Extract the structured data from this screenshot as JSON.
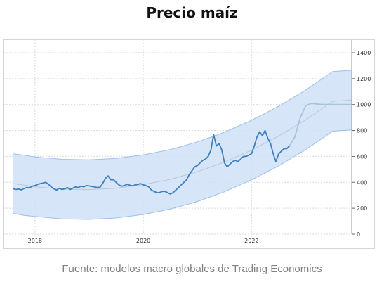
{
  "header": {
    "title": "Precio maíz"
  },
  "footer": {
    "source": "Fuente: modelos macro globales de Trading Economics"
  },
  "chart_data": {
    "type": "line",
    "title": "Precio maíz",
    "xlabel": "",
    "ylabel": "",
    "xlim": [
      2017.6,
      2023.85
    ],
    "ylim": [
      0,
      1400
    ],
    "x_ticks": [
      2018,
      2020,
      2022
    ],
    "x_tick_labels": [
      "2018",
      "2020",
      "2022"
    ],
    "y_ticks": [
      0,
      200,
      400,
      600,
      800,
      1000,
      1200,
      1400
    ],
    "y_tick_labels": [
      "0",
      "200",
      "400",
      "600",
      "800",
      "1000",
      "1200",
      "1400"
    ],
    "y_axis_side": "right",
    "grid": true,
    "legend": "none",
    "colors": {
      "history": "#3f7fbf",
      "forecast": "#a9c2dc",
      "band_fill": "#cfe1f7",
      "band_edge": "#9cc0ea",
      "trend": "#b8c7d8",
      "grid": "#d9d9d9"
    },
    "history": {
      "x": [
        2017.6,
        2017.65,
        2017.7,
        2017.75,
        2017.8,
        2017.85,
        2017.9,
        2017.95,
        2018.0,
        2018.05,
        2018.1,
        2018.15,
        2018.2,
        2018.25,
        2018.3,
        2018.35,
        2018.4,
        2018.45,
        2018.5,
        2018.55,
        2018.6,
        2018.65,
        2018.7,
        2018.75,
        2018.8,
        2018.85,
        2018.9,
        2018.95,
        2019.0,
        2019.05,
        2019.1,
        2019.15,
        2019.2,
        2019.25,
        2019.3,
        2019.35,
        2019.4,
        2019.45,
        2019.5,
        2019.55,
        2019.6,
        2019.65,
        2019.7,
        2019.75,
        2019.8,
        2019.85,
        2019.9,
        2019.95,
        2020.0,
        2020.05,
        2020.1,
        2020.15,
        2020.2,
        2020.25,
        2020.3,
        2020.35,
        2020.4,
        2020.45,
        2020.5,
        2020.55,
        2020.6,
        2020.65,
        2020.7,
        2020.75,
        2020.8,
        2020.85,
        2020.9,
        2020.95,
        2021.0,
        2021.05,
        2021.1,
        2021.15,
        2021.2,
        2021.25,
        2021.3,
        2021.35,
        2021.4,
        2021.45,
        2021.5,
        2021.55,
        2021.6,
        2021.65,
        2021.7,
        2021.75,
        2021.8,
        2021.85,
        2021.9,
        2021.95,
        2022.0,
        2022.05,
        2022.1,
        2022.15,
        2022.2,
        2022.25,
        2022.3,
        2022.35,
        2022.4,
        2022.45,
        2022.5,
        2022.55,
        2022.6,
        2022.65,
        2022.7
      ],
      "y": [
        350,
        345,
        348,
        342,
        352,
        360,
        358,
        370,
        375,
        385,
        390,
        395,
        400,
        385,
        365,
        350,
        340,
        355,
        345,
        350,
        360,
        345,
        355,
        365,
        360,
        370,
        365,
        375,
        372,
        368,
        365,
        360,
        362,
        390,
        430,
        450,
        420,
        420,
        400,
        380,
        370,
        375,
        385,
        378,
        372,
        380,
        385,
        390,
        380,
        375,
        365,
        340,
        330,
        320,
        320,
        330,
        330,
        320,
        310,
        320,
        340,
        360,
        380,
        400,
        420,
        460,
        490,
        520,
        530,
        550,
        570,
        580,
        600,
        650,
        770,
        680,
        700,
        650,
        550,
        520,
        540,
        560,
        570,
        560,
        580,
        600,
        600,
        610,
        620,
        680,
        750,
        790,
        760,
        800,
        740,
        700,
        620,
        560,
        620,
        640,
        660,
        660,
        680
      ]
    },
    "forecast": {
      "x": [
        2022.7,
        2022.8,
        2022.9,
        2023.0,
        2023.1,
        2023.2,
        2023.3,
        2023.5,
        2023.7,
        2023.85
      ],
      "y": [
        680,
        750,
        900,
        990,
        1010,
        1005,
        1000,
        1000,
        1000,
        1000
      ]
    },
    "confidence_band": {
      "x": [
        2017.6,
        2017.8,
        2018.0,
        2018.5,
        2019.0,
        2019.5,
        2020.0,
        2020.5,
        2021.0,
        2021.5,
        2022.0,
        2022.5,
        2023.0,
        2023.5,
        2023.85
      ],
      "upper": [
        620,
        610,
        596,
        578,
        574,
        585,
        612,
        653,
        712,
        787,
        879,
        987,
        1112,
        1255,
        1265
      ],
      "lower": [
        160,
        145,
        136,
        118,
        114,
        125,
        152,
        193,
        252,
        327,
        419,
        527,
        652,
        795,
        805
      ],
      "trend": [
        390,
        378,
        366,
        348,
        344,
        355,
        382,
        423,
        482,
        557,
        649,
        757,
        882,
        1025,
        1035
      ]
    }
  }
}
